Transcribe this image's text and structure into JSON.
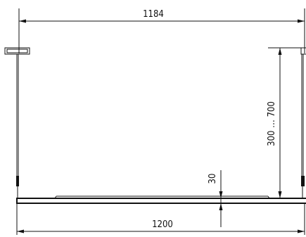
{
  "drawing": {
    "dimensions": {
      "top_width": "1184",
      "bottom_width": "1200",
      "drop_range": "300 … 700",
      "profile_height": "30"
    },
    "colors": {
      "line": "#111111",
      "background": "#ffffff"
    }
  }
}
